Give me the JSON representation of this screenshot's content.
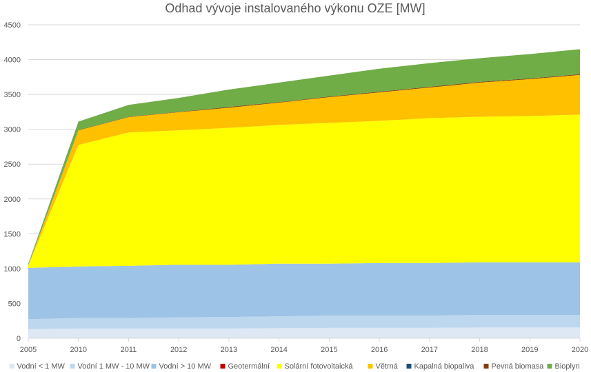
{
  "chart_data": {
    "type": "area",
    "stacked": true,
    "title": "Odhad vývoje instalovaného výkonu OZE [MW]",
    "xlabel": "",
    "ylabel": "",
    "ylim": [
      0,
      4500
    ],
    "yticks": [
      "0",
      "500",
      "1000",
      "1500",
      "2000",
      "2500",
      "3000",
      "3500",
      "4000",
      "4500"
    ],
    "grid": true,
    "legend_position": "bottom",
    "categories": [
      "2005",
      "2010",
      "2011",
      "2012",
      "2013",
      "2014",
      "2015",
      "2016",
      "2017",
      "2018",
      "2019",
      "2020"
    ],
    "series": [
      {
        "name": "Vodní < 1 MW",
        "color": "#dde8f4",
        "values": [
          130,
          140,
          140,
          140,
          140,
          145,
          150,
          150,
          150,
          155,
          155,
          155
        ]
      },
      {
        "name": "Vodní 1 MW - 10 MW",
        "color": "#bdd7ee",
        "values": [
          145,
          150,
          150,
          160,
          165,
          170,
          175,
          175,
          175,
          180,
          180,
          180
        ]
      },
      {
        "name": "Vodní > 10 MW",
        "color": "#9dc3e6",
        "values": [
          735,
          740,
          750,
          755,
          750,
          755,
          745,
          755,
          755,
          755,
          755,
          755
        ]
      },
      {
        "name": "Geotermální",
        "color": "#c00000",
        "values": [
          0,
          0,
          0,
          0,
          0,
          0,
          0,
          0,
          0,
          0,
          0,
          0
        ]
      },
      {
        "name": "Solární fotovoltaická",
        "color": "#ffff00",
        "values": [
          35,
          1745,
          1915,
          1930,
          1965,
          1992,
          2022,
          2040,
          2080,
          2090,
          2100,
          2120
        ]
      },
      {
        "name": "Větrná",
        "color": "#ffc000",
        "values": [
          5,
          210,
          220,
          260,
          290,
          320,
          370,
          410,
          440,
          490,
          530,
          570
        ]
      },
      {
        "name": "Kapalná biopaliva",
        "color": "#1f4e79",
        "values": [
          0,
          0,
          0,
          0,
          0,
          0,
          0,
          0,
          0,
          0,
          0,
          0
        ]
      },
      {
        "name": "Pevná biomasa",
        "color": "#843c0c",
        "values": [
          5,
          5,
          5,
          5,
          10,
          8,
          8,
          10,
          10,
          10,
          10,
          10
        ]
      },
      {
        "name": "Bioplyn",
        "color": "#70ad47",
        "values": [
          15,
          120,
          170,
          200,
          250,
          280,
          300,
          330,
          340,
          340,
          350,
          360
        ]
      }
    ]
  }
}
